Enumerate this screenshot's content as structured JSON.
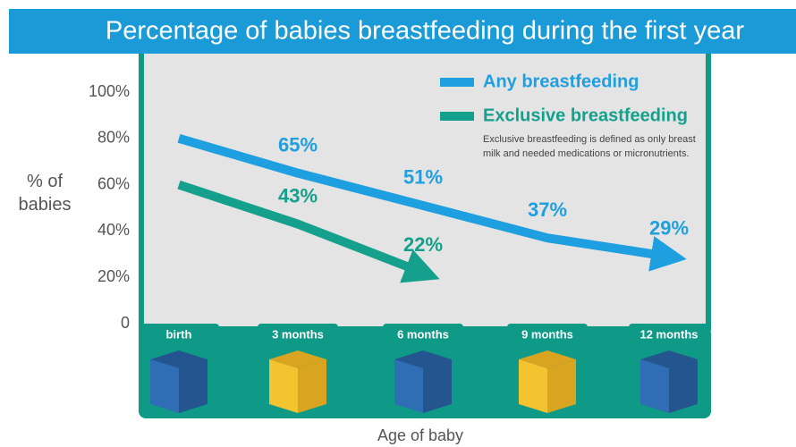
{
  "chart_data": {
    "type": "line",
    "title": "Percentage of babies breastfeeding during the first year",
    "y_label": "% of babies",
    "x_label": "Age of baby",
    "note": "Exclusive breastfeeding is defined as only breast milk and needed medications or micronutrients.",
    "categories": [
      "birth",
      "3 months",
      "6 months",
      "9 months",
      "12 months"
    ],
    "series": [
      {
        "name": "Any breastfeeding",
        "color": "#1e9fdf",
        "values": [
          80,
          65,
          51,
          37,
          29
        ],
        "value_labels": [
          null,
          "65%",
          "51%",
          "37%",
          "29%"
        ]
      },
      {
        "name": "Exclusive breastfeeding",
        "color": "#14a08c",
        "values": [
          60,
          43,
          22,
          null,
          null
        ],
        "value_labels": [
          null,
          "43%",
          "22%",
          null,
          null
        ]
      }
    ],
    "ylim": [
      0,
      100
    ],
    "yticks": [
      0,
      {
        "value": 20,
        "label": "20%"
      },
      {
        "value": 40,
        "label": "40%"
      },
      {
        "value": 60,
        "label": "60%"
      },
      {
        "value": 80,
        "label": "80%"
      },
      {
        "value": 100,
        "label": "100%"
      }
    ]
  }
}
